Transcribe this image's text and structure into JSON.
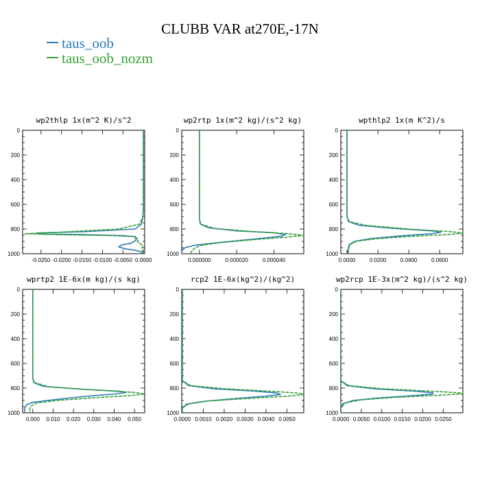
{
  "title": "CLUBB VAR at270E,-17N",
  "legend": [
    {
      "name": "taus_oob",
      "color": "#2a7ab8"
    },
    {
      "name": "taus_oob_nozm",
      "color": "#35a035"
    }
  ],
  "chart_data": [
    {
      "type": "line",
      "title": "wp2thlp  1x(m^2 K)/s^2",
      "xlim": [
        -0.0295,
        0.0003
      ],
      "ylim": [
        1000,
        0
      ],
      "xticks": [
        -0.025,
        -0.02,
        -0.015,
        -0.01,
        -0.005,
        0.0
      ],
      "xtick_labels": [
        "-0.0250",
        "-0.0200",
        "-0.0150",
        "-0.0100",
        "-0.0050",
        "0.0000"
      ],
      "yticks": [
        0,
        200,
        400,
        600,
        800,
        1000
      ],
      "series": [
        {
          "name": "taus_oob",
          "points": [
            [
              0.0,
              0
            ],
            [
              0.0,
              600
            ],
            [
              -0.0001,
              700
            ],
            [
              -0.0005,
              760
            ],
            [
              -0.002,
              800
            ],
            [
              -0.015,
              822
            ],
            [
              -0.0262,
              832
            ],
            [
              -0.0255,
              840
            ],
            [
              -0.015,
              845
            ],
            [
              -0.005,
              853
            ],
            [
              -0.002,
              862
            ],
            [
              -0.0018,
              890
            ],
            [
              -0.003,
              915
            ],
            [
              -0.0055,
              930
            ],
            [
              -0.006,
              945
            ],
            [
              -0.0045,
              960
            ],
            [
              -0.002,
              972
            ],
            [
              -0.0005,
              985
            ],
            [
              0.0,
              1000
            ]
          ]
        },
        {
          "name": "taus_oob_nozm",
          "points": [
            [
              0.0,
              0
            ],
            [
              0.0,
              600
            ],
            [
              -0.0002,
              710
            ],
            [
              -0.001,
              760
            ],
            [
              -0.006,
              800
            ],
            [
              -0.02,
              825
            ],
            [
              -0.029,
              838
            ],
            [
              -0.02,
              846
            ],
            [
              -0.008,
              853
            ],
            [
              -0.002,
              862
            ],
            [
              -0.0012,
              890
            ],
            [
              -0.0015,
              905
            ],
            [
              -0.0002,
              930
            ],
            [
              -0.0003,
              960
            ],
            [
              -0.0002,
              985
            ],
            [
              0.0,
              1000
            ]
          ]
        }
      ]
    },
    {
      "type": "line",
      "title": "wp2rtp  1x(m^2 kg)/(s^2 kg)",
      "xlim": [
        -9.5e-06,
        5.6e-05
      ],
      "ylim": [
        1000,
        0
      ],
      "xticks": [
        0.0,
        2e-05,
        4e-05
      ],
      "xtick_labels": [
        "0.000000",
        "0.000020",
        "0.000040"
      ],
      "yticks": [
        0,
        200,
        400,
        600,
        800,
        1000
      ],
      "series": [
        {
          "name": "taus_oob",
          "points": [
            [
              0.0,
              0
            ],
            [
              0.0,
              600
            ],
            [
              0.0,
              720
            ],
            [
              5e-07,
              760
            ],
            [
              5e-06,
              790
            ],
            [
              2e-05,
              815
            ],
            [
              4e-05,
              830
            ],
            [
              4.6e-05,
              845
            ],
            [
              4.4e-05,
              858
            ],
            [
              3e-05,
              880
            ],
            [
              1e-05,
              910
            ],
            [
              -2e-06,
              930
            ],
            [
              -7.5e-06,
              950
            ],
            [
              -9e-06,
              965
            ],
            [
              -9.5e-06,
              985
            ],
            [
              -9.5e-06,
              1000
            ]
          ]
        },
        {
          "name": "taus_oob_nozm",
          "points": [
            [
              0.0,
              0
            ],
            [
              0.0,
              600
            ],
            [
              0.0,
              720
            ],
            [
              8e-07,
              760
            ],
            [
              8e-06,
              795
            ],
            [
              2.8e-05,
              820
            ],
            [
              4.8e-05,
              838
            ],
            [
              5.6e-05,
              852
            ],
            [
              4.7e-05,
              866
            ],
            [
              3e-05,
              885
            ],
            [
              1e-05,
              912
            ],
            [
              0.0,
              935
            ],
            [
              -3e-06,
              960
            ],
            [
              -4.5e-06,
              985
            ],
            [
              -4.5e-06,
              1000
            ]
          ]
        }
      ]
    },
    {
      "type": "line",
      "title": "wpthlp2  1x(m K^2)/s",
      "xlim": [
        -0.004,
        0.075
      ],
      "ylim": [
        1000,
        0
      ],
      "xticks": [
        0.0,
        0.02,
        0.04,
        0.06
      ],
      "xtick_labels": [
        "0.0000",
        "0.0200",
        "0.0400",
        "0.0600"
      ],
      "yticks": [
        0,
        200,
        400,
        600,
        800,
        1000
      ],
      "series": [
        {
          "name": "taus_oob",
          "points": [
            [
              0.0,
              0
            ],
            [
              0.0,
              600
            ],
            [
              0.0,
              700
            ],
            [
              0.001,
              740
            ],
            [
              0.008,
              770
            ],
            [
              0.03,
              795
            ],
            [
              0.055,
              815
            ],
            [
              0.061,
              825
            ],
            [
              0.055,
              838
            ],
            [
              0.035,
              855
            ],
            [
              0.015,
              878
            ],
            [
              0.005,
              900
            ],
            [
              0.0015,
              925
            ],
            [
              0.0008,
              960
            ],
            [
              0.0005,
              1000
            ]
          ]
        },
        {
          "name": "taus_oob_nozm",
          "points": [
            [
              0.0,
              0
            ],
            [
              0.0,
              600
            ],
            [
              0.0,
              700
            ],
            [
              0.0015,
              740
            ],
            [
              0.012,
              770
            ],
            [
              0.04,
              800
            ],
            [
              0.068,
              822
            ],
            [
              0.075,
              833
            ],
            [
              0.065,
              845
            ],
            [
              0.04,
              860
            ],
            [
              0.018,
              880
            ],
            [
              0.006,
              900
            ],
            [
              0.002,
              925
            ],
            [
              0.001,
              960
            ],
            [
              0.0008,
              1000
            ]
          ]
        }
      ]
    },
    {
      "type": "line",
      "title": "wprtp2  1E-6x(m kg)/(s kg)",
      "xlim": [
        -0.005,
        0.055
      ],
      "ylim": [
        1000,
        0
      ],
      "xticks": [
        0.0,
        0.01,
        0.02,
        0.03,
        0.04,
        0.05
      ],
      "xtick_labels": [
        "0.000",
        "0.010",
        "0.020",
        "0.030",
        "0.040",
        "0.050"
      ],
      "yticks": [
        0,
        200,
        400,
        600,
        800,
        1000
      ],
      "series": [
        {
          "name": "taus_oob",
          "points": [
            [
              0.0,
              0
            ],
            [
              0.0,
              600
            ],
            [
              0.0,
              720
            ],
            [
              0.0005,
              755
            ],
            [
              0.005,
              785
            ],
            [
              0.025,
              810
            ],
            [
              0.043,
              825
            ],
            [
              0.046,
              835
            ],
            [
              0.04,
              848
            ],
            [
              0.025,
              868
            ],
            [
              0.01,
              895
            ],
            [
              0.0,
              915
            ],
            [
              -0.003,
              935
            ],
            [
              -0.004,
              960
            ],
            [
              -0.004,
              985
            ],
            [
              -0.004,
              1000
            ]
          ]
        },
        {
          "name": "taus_oob_nozm",
          "points": [
            [
              0.0,
              0
            ],
            [
              0.0,
              600
            ],
            [
              0.0,
              720
            ],
            [
              0.0008,
              755
            ],
            [
              0.008,
              790
            ],
            [
              0.03,
              815
            ],
            [
              0.05,
              835
            ],
            [
              0.055,
              848
            ],
            [
              0.048,
              860
            ],
            [
              0.03,
              878
            ],
            [
              0.012,
              900
            ],
            [
              0.002,
              920
            ],
            [
              -0.001,
              945
            ],
            [
              -0.0015,
              970
            ],
            [
              -0.0015,
              1000
            ]
          ]
        }
      ]
    },
    {
      "type": "line",
      "title": "rcp2  1E-6x(kg^2)/(kg^2)",
      "xlim": [
        -3e-05,
        0.0058
      ],
      "ylim": [
        1000,
        0
      ],
      "xticks": [
        0.0,
        0.001,
        0.002,
        0.003,
        0.004,
        0.005
      ],
      "xtick_labels": [
        "0.0000",
        "0.0010",
        "0.0020",
        "0.0030",
        "0.0040",
        "0.0050"
      ],
      "yticks": [
        0,
        200,
        400,
        600,
        800,
        1000
      ],
      "series": [
        {
          "name": "taus_oob",
          "points": [
            [
              0.0,
              0
            ],
            [
              0.0,
              740
            ],
            [
              0.0003,
              780
            ],
            [
              0.0015,
              805
            ],
            [
              0.0035,
              825
            ],
            [
              0.0045,
              840
            ],
            [
              0.0047,
              852
            ],
            [
              0.004,
              865
            ],
            [
              0.0025,
              885
            ],
            [
              0.001,
              908
            ],
            [
              0.0002,
              930
            ],
            [
              0.0,
              960
            ],
            [
              0.0,
              1000
            ]
          ]
        },
        {
          "name": "taus_oob_nozm",
          "points": [
            [
              0.0,
              0
            ],
            [
              0.0,
              740
            ],
            [
              0.0004,
              780
            ],
            [
              0.002,
              805
            ],
            [
              0.0045,
              828
            ],
            [
              0.0056,
              842
            ],
            [
              0.0058,
              852
            ],
            [
              0.005,
              866
            ],
            [
              0.003,
              885
            ],
            [
              0.0012,
              905
            ],
            [
              0.0003,
              928
            ],
            [
              0.0,
              960
            ],
            [
              0.0,
              1000
            ]
          ]
        }
      ]
    },
    {
      "type": "line",
      "title": "wp2rcp  1E-3x(m^2 kg)/(s^2 kg)",
      "xlim": [
        -3e-05,
        0.0298
      ],
      "ylim": [
        1000,
        0
      ],
      "xticks": [
        0.0,
        0.005,
        0.01,
        0.015,
        0.02,
        0.025
      ],
      "xtick_labels": [
        "0.0000",
        "0.0050",
        "0.0100",
        "0.0150",
        "0.0200",
        "0.0250"
      ],
      "yticks": [
        0,
        200,
        400,
        600,
        800,
        1000
      ],
      "series": [
        {
          "name": "taus_oob",
          "points": [
            [
              0.0,
              0
            ],
            [
              0.0,
              740
            ],
            [
              0.0015,
              780
            ],
            [
              0.008,
              805
            ],
            [
              0.018,
              825
            ],
            [
              0.0225,
              838
            ],
            [
              0.0225,
              848
            ],
            [
              0.017,
              862
            ],
            [
              0.009,
              880
            ],
            [
              0.003,
              900
            ],
            [
              0.0005,
              925
            ],
            [
              0.0,
              960
            ],
            [
              0.0,
              1000
            ]
          ]
        },
        {
          "name": "taus_oob_nozm",
          "points": [
            [
              0.0,
              0
            ],
            [
              0.0,
              740
            ],
            [
              0.002,
              780
            ],
            [
              0.01,
              805
            ],
            [
              0.022,
              825
            ],
            [
              0.029,
              838
            ],
            [
              0.0298,
              846
            ],
            [
              0.024,
              858
            ],
            [
              0.013,
              875
            ],
            [
              0.005,
              895
            ],
            [
              0.001,
              920
            ],
            [
              0.0,
              960
            ],
            [
              0.0,
              1000
            ]
          ]
        }
      ]
    }
  ]
}
